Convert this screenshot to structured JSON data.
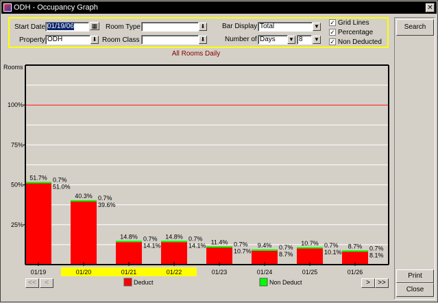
{
  "window": {
    "title": "ODH - Occupancy Graph"
  },
  "filters": {
    "start_date_label": "Start Date",
    "start_date": "01/19/06",
    "property_label": "Property",
    "property": "ODH",
    "room_type_label": "Room Type",
    "room_type": "",
    "room_class_label": "Room Class",
    "room_class": "",
    "bar_display_label": "Bar Display",
    "bar_display": "Total",
    "number_of_label": "Number of",
    "number_of_unit": "Days",
    "number_of_value": "8",
    "grid_lines": "Grid Lines",
    "percentage": "Percentage",
    "non_deducted": "Non Deducted"
  },
  "buttons": {
    "search": "Search",
    "print": "Print",
    "close": "Close",
    "first": "<<",
    "prev": "<",
    "next": ">",
    "last": ">>"
  },
  "chart_title": "All Rooms Daily",
  "chart_data": {
    "type": "bar",
    "stacked": true,
    "title": "All Rooms Daily",
    "ylabel": "Rooms",
    "ylim": [
      0,
      125
    ],
    "grid": true,
    "yticks": [
      "25%",
      "50%",
      "75%",
      "100%"
    ],
    "ytick_values": [
      25,
      50,
      75,
      100
    ],
    "reference_line": {
      "value": 100,
      "color": "#ff0000"
    },
    "categories": [
      "01/19",
      "01/20",
      "01/21",
      "01/22",
      "01/23",
      "01/24",
      "01/25",
      "01/26"
    ],
    "highlighted_categories": [
      "01/20",
      "01/21",
      "01/22"
    ],
    "series": [
      {
        "name": "Deduct",
        "color": "#ff0000",
        "values": [
          51.0,
          39.6,
          14.1,
          14.1,
          10.7,
          8.7,
          10.1,
          8.1
        ],
        "labels": [
          "51.0%",
          "39.6%",
          "14.1%",
          "14.1%",
          "10.7%",
          "8.7%",
          "10.1%",
          "8.1%"
        ]
      },
      {
        "name": "Non Deduct",
        "color": "#00ff00",
        "values": [
          0.7,
          0.7,
          0.7,
          0.7,
          0.7,
          0.7,
          0.7,
          0.7
        ],
        "labels": [
          "0.7%",
          "0.7%",
          "0.7%",
          "0.7%",
          "0.7%",
          "0.7%",
          "0.7%",
          "0.7%"
        ]
      }
    ],
    "totals": [
      "51.7%",
      "40.3%",
      "14.8%",
      "14.8%",
      "11.4%",
      "9.4%",
      "10.7%",
      "8.7%"
    ],
    "legend_placement": "bottom"
  },
  "colors": {
    "highlight": "#ffff00",
    "filter_border": "#ffff00",
    "title_text": "#800000"
  }
}
